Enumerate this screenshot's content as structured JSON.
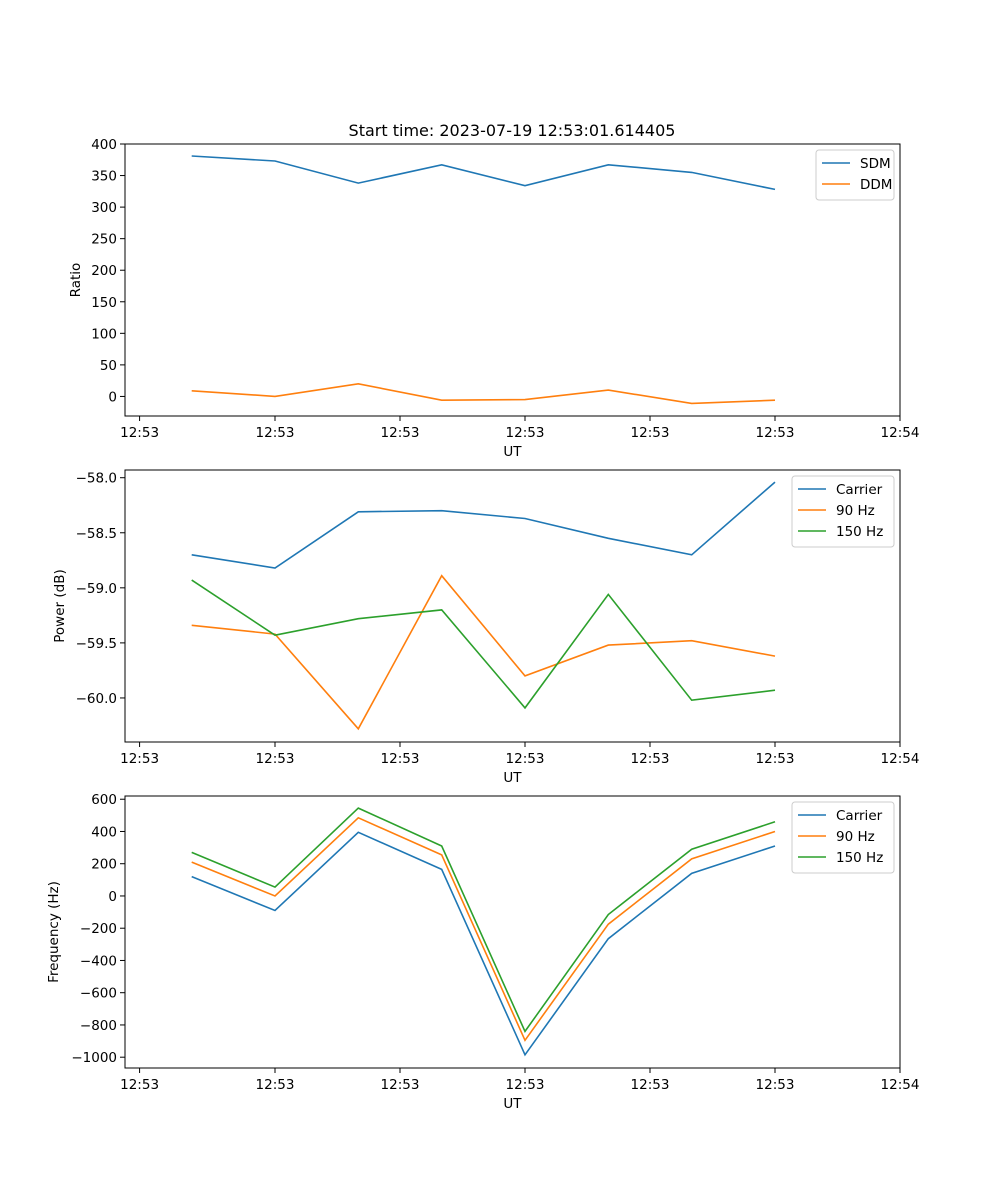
{
  "chart_data": [
    {
      "type": "line",
      "title": "Start time: 2023-07-19 12:53:01.614405",
      "xlabel": "UT",
      "ylabel": "Ratio",
      "x": [
        1,
        2,
        3,
        4,
        5,
        6,
        7,
        8
      ],
      "xlim": [
        0.2,
        9.5
      ],
      "xticks": [
        0.375,
        2,
        3.5,
        5,
        6.5,
        8,
        9.5
      ],
      "xtick_labels": [
        "12:53",
        "12:53",
        "12:53",
        "12:53",
        "12:53",
        "12:53",
        "12:54"
      ],
      "ylim": [
        -31,
        400
      ],
      "yticks": [
        0,
        50,
        100,
        150,
        200,
        250,
        300,
        350,
        400
      ],
      "legend_position": "top-right",
      "series": [
        {
          "name": "SDM",
          "color": "#1f77b4",
          "values": [
            381,
            373,
            338,
            367,
            334,
            367,
            355,
            328
          ]
        },
        {
          "name": "DDM",
          "color": "#ff7f0e",
          "values": [
            9,
            0,
            20,
            -6,
            -5,
            10,
            -11,
            -6
          ]
        }
      ]
    },
    {
      "type": "line",
      "title": "",
      "xlabel": "UT",
      "ylabel": "Power (dB)",
      "x": [
        1,
        2,
        3,
        4,
        5,
        6,
        7,
        8
      ],
      "xlim": [
        0.2,
        9.5
      ],
      "xticks": [
        0.375,
        2,
        3.5,
        5,
        6.5,
        8,
        9.5
      ],
      "xtick_labels": [
        "12:53",
        "12:53",
        "12:53",
        "12:53",
        "12:53",
        "12:53",
        "12:54"
      ],
      "ylim": [
        -60.4,
        -57.93
      ],
      "yticks": [
        -60.0,
        -59.5,
        -59.0,
        -58.5,
        -58.0
      ],
      "ytick_labels": [
        "−60.0",
        "−59.5",
        "−59.0",
        "−58.5",
        "−58.0"
      ],
      "legend_position": "top-right",
      "series": [
        {
          "name": "Carrier",
          "color": "#1f77b4",
          "values": [
            -58.7,
            -58.82,
            -58.31,
            -58.3,
            -58.37,
            -58.55,
            -58.7,
            -58.04
          ]
        },
        {
          "name": "90 Hz",
          "color": "#ff7f0e",
          "values": [
            -59.34,
            -59.42,
            -60.28,
            -58.89,
            -59.8,
            -59.52,
            -59.48,
            -59.62
          ]
        },
        {
          "name": "150 Hz",
          "color": "#2ca02c",
          "values": [
            -58.93,
            -59.43,
            -59.28,
            -59.2,
            -60.09,
            -59.06,
            -60.02,
            -59.93
          ]
        }
      ]
    },
    {
      "type": "line",
      "title": "",
      "xlabel": "UT",
      "ylabel": "Frequency (Hz)",
      "x": [
        1,
        2,
        3,
        4,
        5,
        6,
        7,
        8
      ],
      "xlim": [
        0.2,
        9.5
      ],
      "xticks": [
        0.375,
        2,
        3.5,
        5,
        6.5,
        8,
        9.5
      ],
      "xtick_labels": [
        "12:53",
        "12:53",
        "12:53",
        "12:53",
        "12:53",
        "12:53",
        "12:54"
      ],
      "ylim": [
        -1067,
        620
      ],
      "yticks": [
        -1000,
        -800,
        -600,
        -400,
        -200,
        0,
        200,
        400,
        600
      ],
      "ytick_labels": [
        "−1000",
        "−800",
        "−600",
        "−400",
        "−200",
        "0",
        "200",
        "400",
        "600"
      ],
      "legend_position": "top-right",
      "series": [
        {
          "name": "Carrier",
          "color": "#1f77b4",
          "values": [
            120,
            -90,
            395,
            165,
            -985,
            -265,
            140,
            310
          ]
        },
        {
          "name": "90 Hz",
          "color": "#ff7f0e",
          "values": [
            210,
            0,
            485,
            255,
            -895,
            -175,
            230,
            400
          ]
        },
        {
          "name": "150 Hz",
          "color": "#2ca02c",
          "values": [
            270,
            55,
            545,
            310,
            -840,
            -115,
            290,
            460
          ]
        }
      ]
    }
  ]
}
